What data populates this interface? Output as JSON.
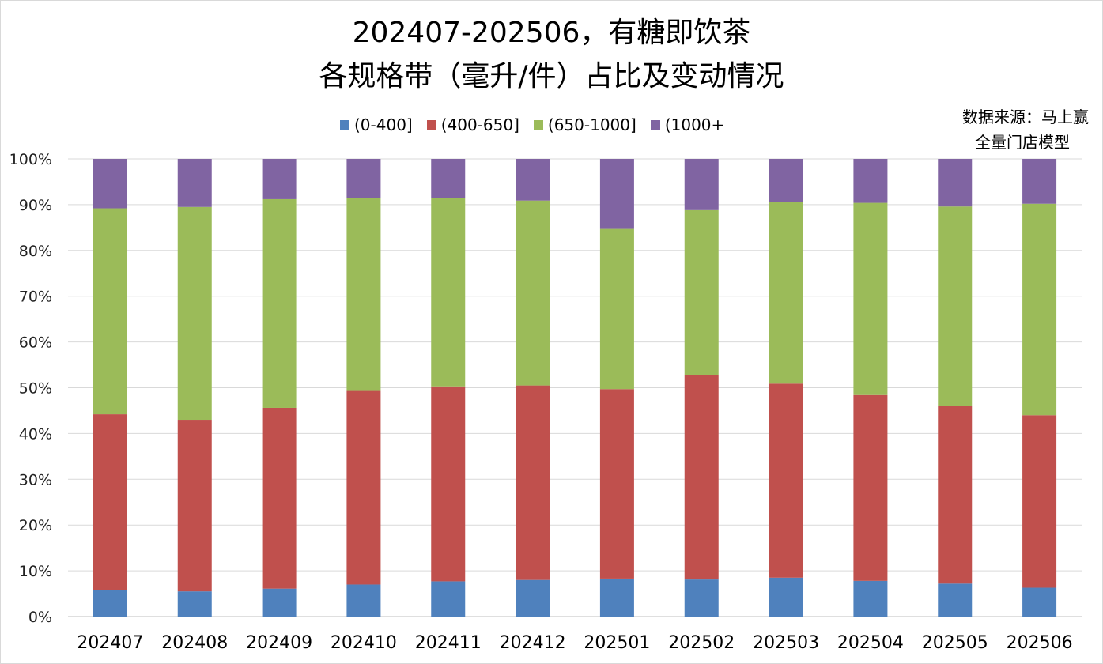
{
  "title_line1": "202407-202506，有糖即饮茶",
  "title_line2": "各规格带（毫升/件）占比及变动情况",
  "source_line1": "数据来源：马上赢",
  "source_line2": "全量门店模型",
  "legend": [
    {
      "label": "(0-400]",
      "color": "#4f81bd"
    },
    {
      "label": "(400-650]",
      "color": "#c0504d"
    },
    {
      "label": "(650-1000]",
      "color": "#9bbb59"
    },
    {
      "label": "(1000+",
      "color": "#8064a2"
    }
  ],
  "chart_data": {
    "type": "bar",
    "stacked": true,
    "categories": [
      "202407",
      "202408",
      "202409",
      "202410",
      "202411",
      "202412",
      "202501",
      "202502",
      "202503",
      "202504",
      "202505",
      "202506"
    ],
    "series": [
      {
        "name": "(0-400]",
        "color": "#4f81bd",
        "values": [
          5.8,
          5.5,
          6.1,
          7.0,
          7.7,
          8.0,
          8.3,
          8.1,
          8.5,
          7.8,
          7.2,
          6.3
        ]
      },
      {
        "name": "(400-650]",
        "color": "#c0504d",
        "values": [
          38.4,
          37.5,
          39.5,
          42.3,
          42.6,
          42.5,
          41.4,
          44.6,
          42.4,
          40.6,
          38.8,
          37.7
        ]
      },
      {
        "name": "(650-1000]",
        "color": "#9bbb59",
        "values": [
          45.0,
          46.5,
          45.6,
          42.2,
          41.1,
          40.4,
          35.0,
          36.1,
          39.7,
          42.0,
          43.6,
          46.2
        ]
      },
      {
        "name": "(1000+",
        "color": "#8064a2",
        "values": [
          10.8,
          10.5,
          8.8,
          8.5,
          8.6,
          9.1,
          15.3,
          11.2,
          9.4,
          9.6,
          10.4,
          9.8
        ]
      }
    ],
    "ylim": [
      0,
      100
    ],
    "yticks": [
      "0%",
      "10%",
      "20%",
      "30%",
      "40%",
      "50%",
      "60%",
      "70%",
      "80%",
      "90%",
      "100%"
    ],
    "grid": true,
    "legend_position": "top"
  }
}
